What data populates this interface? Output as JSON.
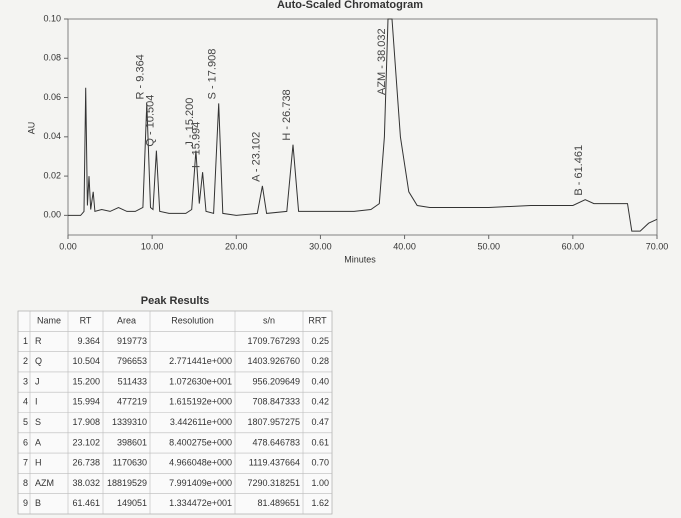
{
  "chart_data": {
    "type": "line",
    "title": "Auto-Scaled Chromatogram",
    "x_label": "Minutes",
    "y_label": "AU",
    "xlim": [
      0,
      70
    ],
    "ylim": [
      -0.01,
      0.1
    ],
    "xticks": [
      {
        "value": 0,
        "label": "0.00"
      },
      {
        "value": 10,
        "label": "10.00"
      },
      {
        "value": 20,
        "label": "20.00"
      },
      {
        "value": 30,
        "label": "30.00"
      },
      {
        "value": 40,
        "label": "40.00"
      },
      {
        "value": 50,
        "label": "50.00"
      },
      {
        "value": 60,
        "label": "60.00"
      },
      {
        "value": 70,
        "label": "70.00"
      }
    ],
    "yticks": [
      {
        "value": 0,
        "label": "0.00"
      },
      {
        "value": 0.02,
        "label": "0.02"
      },
      {
        "value": 0.04,
        "label": "0.04"
      },
      {
        "value": 0.06,
        "label": "0.06"
      },
      {
        "value": 0.08,
        "label": "0.08"
      },
      {
        "value": 0.1,
        "label": "0.10"
      }
    ],
    "x": [
      0,
      1.5,
      1.9,
      2.1,
      2.3,
      2.5,
      2.7,
      3.0,
      3.2,
      4,
      5,
      6,
      7,
      8,
      8.9,
      9.364,
      9.8,
      10.1,
      10.504,
      10.9,
      12,
      14,
      14.7,
      15.2,
      15.6,
      15.994,
      16.4,
      17.3,
      17.908,
      18.4,
      20,
      22.5,
      23.102,
      23.6,
      26,
      26.738,
      27.4,
      30,
      34,
      36,
      37,
      37.6,
      38.032,
      38.5,
      39.5,
      40.5,
      41.5,
      43,
      50,
      55,
      60,
      61.461,
      62.5,
      66,
      66.5,
      67,
      68,
      69,
      70
    ],
    "series": [
      {
        "color": "#333333",
        "values": [
          0.0,
          0.0,
          0.002,
          0.065,
          0.005,
          0.02,
          0.003,
          0.012,
          0.002,
          0.003,
          0.002,
          0.004,
          0.002,
          0.002,
          0.004,
          0.057,
          0.004,
          0.003,
          0.033,
          0.002,
          0.001,
          0.001,
          0.003,
          0.033,
          0.006,
          0.022,
          0.002,
          0.001,
          0.057,
          0.001,
          0.0,
          0.001,
          0.015,
          0.001,
          0.002,
          0.036,
          0.002,
          0.002,
          0.002,
          0.003,
          0.006,
          0.04,
          0.1,
          0.1,
          0.04,
          0.012,
          0.005,
          0.004,
          0.004,
          0.005,
          0.005,
          0.008,
          0.006,
          0.006,
          0.006,
          -0.008,
          -0.008,
          -0.004,
          -0.002
        ]
      }
    ],
    "annotations": [
      {
        "text": "R - 9.364",
        "x": 9.364
      },
      {
        "text": "Q - 10.504",
        "x": 10.504
      },
      {
        "text": "J - 15.200",
        "x": 15.2
      },
      {
        "text": "I - 15.994",
        "x": 15.994
      },
      {
        "text": "S - 17.908",
        "x": 17.908
      },
      {
        "text": "A - 23.102",
        "x": 23.102
      },
      {
        "text": "H - 26.738",
        "x": 26.738
      },
      {
        "text": "AZM - 38.032",
        "x": 38.032
      },
      {
        "text": "B - 61.461",
        "x": 61.461
      }
    ]
  },
  "table": {
    "title": "Peak Results",
    "header": [
      "Name",
      "RT",
      "Area",
      "Resolution",
      "s/n",
      "RRT"
    ],
    "rows": [
      [
        "1",
        "R",
        "9.364",
        "919773",
        null,
        "1709.767293",
        "0.25"
      ],
      [
        "2",
        "Q",
        "10.504",
        "796653",
        "2.771441e+000",
        "1403.926760",
        "0.28"
      ],
      [
        "3",
        "J",
        "15.200",
        "511433",
        "1.072630e+001",
        "956.209649",
        "0.40"
      ],
      [
        "4",
        "I",
        "15.994",
        "477219",
        "1.615192e+000",
        "708.847333",
        "0.42"
      ],
      [
        "5",
        "S",
        "17.908",
        "1339310",
        "3.442611e+000",
        "1807.957275",
        "0.47"
      ],
      [
        "6",
        "A",
        "23.102",
        "398601",
        "8.400275e+000",
        "478.646783",
        "0.61"
      ],
      [
        "7",
        "H",
        "26.738",
        "1170630",
        "4.966048e+000",
        "1119.437664",
        "0.70"
      ],
      [
        "8",
        "AZM",
        "38.032",
        "18819529",
        "7.991409e+000",
        "7290.318251",
        "1.00"
      ],
      [
        "9",
        "B",
        "61.461",
        "149051",
        "1.334472e+001",
        "81.489651",
        "1.62"
      ]
    ]
  }
}
